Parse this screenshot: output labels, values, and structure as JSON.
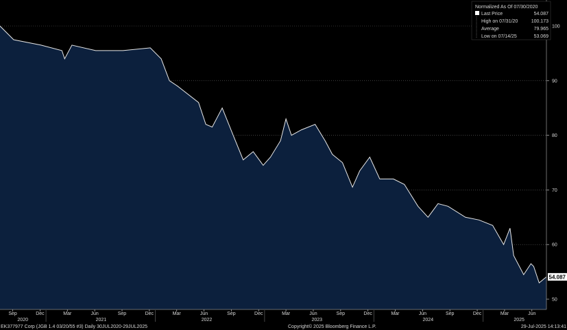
{
  "chart_data": {
    "type": "area",
    "title": "EK377977 Corp (JGB 1.4 03/20/55 #3)",
    "x_unit": "months since 30 Jul 2020",
    "xlim": [
      0,
      60
    ],
    "ylim": [
      48,
      104
    ],
    "yticks": [
      50,
      60,
      70,
      80,
      90,
      100
    ],
    "grid": true,
    "legend_position": "top-right",
    "points": [
      [
        0,
        100
      ],
      [
        1.5,
        97.5
      ],
      [
        4.5,
        96.5
      ],
      [
        6.8,
        95.5
      ],
      [
        7.1,
        94
      ],
      [
        7.9,
        96.5
      ],
      [
        10.5,
        95.5
      ],
      [
        13.5,
        95.5
      ],
      [
        16.5,
        96
      ],
      [
        17.7,
        94
      ],
      [
        18.6,
        90
      ],
      [
        19.5,
        89
      ],
      [
        21.8,
        86
      ],
      [
        22.6,
        82
      ],
      [
        23.3,
        81.5
      ],
      [
        24.4,
        85
      ],
      [
        25.6,
        80
      ],
      [
        26.7,
        75.5
      ],
      [
        27.8,
        77
      ],
      [
        28.9,
        74.5
      ],
      [
        29.7,
        76
      ],
      [
        30.8,
        79
      ],
      [
        31.4,
        83
      ],
      [
        32,
        80
      ],
      [
        33.1,
        81
      ],
      [
        34.6,
        82
      ],
      [
        35.7,
        79
      ],
      [
        36.5,
        76.5
      ],
      [
        37.6,
        75
      ],
      [
        38.7,
        70.5
      ],
      [
        39.5,
        73.5
      ],
      [
        40.6,
        76
      ],
      [
        41.7,
        72
      ],
      [
        43.2,
        72
      ],
      [
        44.4,
        71
      ],
      [
        45.9,
        67
      ],
      [
        47,
        65
      ],
      [
        48.1,
        67.5
      ],
      [
        49.2,
        67
      ],
      [
        51.1,
        65
      ],
      [
        52.6,
        64.5
      ],
      [
        54.1,
        63.5
      ],
      [
        55.3,
        60
      ],
      [
        56,
        63
      ],
      [
        56.4,
        58
      ],
      [
        57.5,
        54.5
      ],
      [
        58.3,
        56.5
      ],
      [
        58.6,
        56
      ],
      [
        59.2,
        53
      ],
      [
        60,
        54.087
      ]
    ],
    "month_ticks": [
      {
        "label": "Sep",
        "x": 1.4
      },
      {
        "label": "Dec",
        "x": 4.4
      },
      {
        "label": "Mar",
        "x": 7.4
      },
      {
        "label": "Jun",
        "x": 10.4
      },
      {
        "label": "Sep",
        "x": 13.4
      },
      {
        "label": "Dec",
        "x": 16.4
      },
      {
        "label": "Mar",
        "x": 19.4
      },
      {
        "label": "Jun",
        "x": 22.4
      },
      {
        "label": "Sep",
        "x": 25.4
      },
      {
        "label": "Dec",
        "x": 28.4
      },
      {
        "label": "Mar",
        "x": 31.4
      },
      {
        "label": "Jun",
        "x": 34.4
      },
      {
        "label": "Sep",
        "x": 37.4
      },
      {
        "label": "Dec",
        "x": 40.4
      },
      {
        "label": "Mar",
        "x": 43.4
      },
      {
        "label": "Jun",
        "x": 46.4
      },
      {
        "label": "Sep",
        "x": 49.4
      },
      {
        "label": "Dec",
        "x": 52.4
      },
      {
        "label": "Mar",
        "x": 55.4
      },
      {
        "label": "Jun",
        "x": 58.4
      }
    ],
    "year_labels": [
      {
        "label": "2020",
        "x": 2.5
      },
      {
        "label": "2021",
        "x": 11.1
      },
      {
        "label": "2022",
        "x": 22.7
      },
      {
        "label": "2023",
        "x": 34.8
      },
      {
        "label": "2024",
        "x": 47
      },
      {
        "label": "2025",
        "x": 57
      }
    ],
    "year_boundaries": [
      5.05,
      17.05,
      29.05,
      41.05,
      53.05
    ],
    "last_value_label": "54.087",
    "legend": {
      "header": "Normalized As Of 07/30/2020",
      "rows": [
        {
          "label": "Last Price",
          "value": "54.087"
        },
        {
          "label": "High on 07/31/20",
          "value": "100.173"
        },
        {
          "label": "Average",
          "value": "79.965"
        },
        {
          "label": "Low on 07/14/25",
          "value": "53.069"
        }
      ]
    },
    "colors": {
      "fill": "#0c203d",
      "line": "#e8e8e8",
      "grid": "#6a6a6a"
    }
  },
  "footer": {
    "security": "EK377977 Corp (JGB 1.4 03/20/55 #3)  Daily 30JUL2020-29JUL2025",
    "copyright": "Copyright© 2025 Bloomberg Finance L.P.",
    "timestamp": "29-Jul-2025 14:13:41"
  }
}
